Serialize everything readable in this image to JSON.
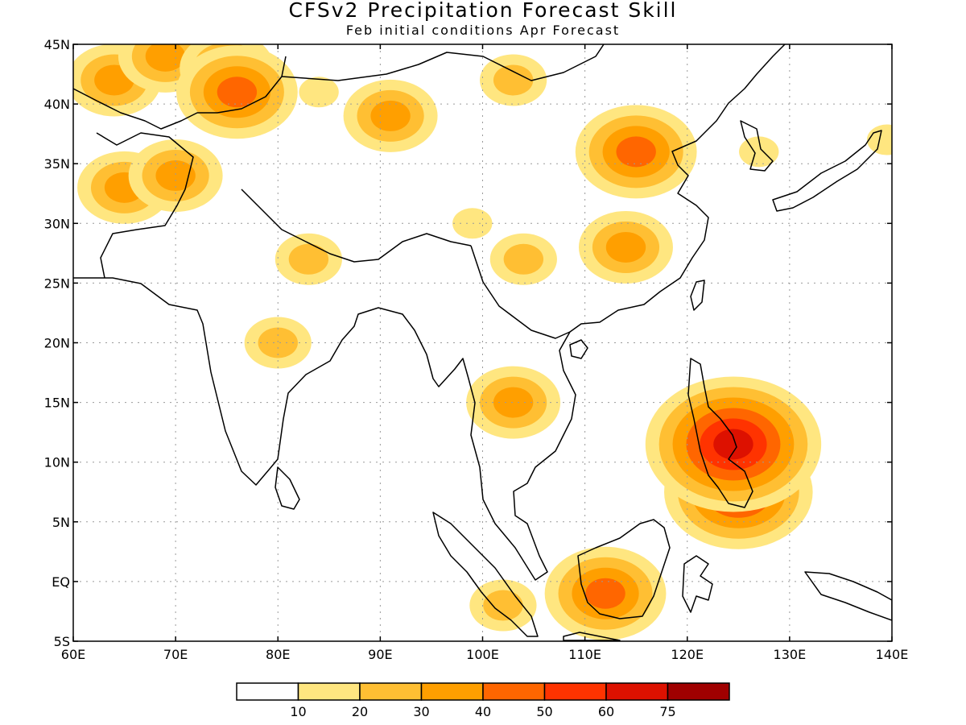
{
  "title": "CFSv2 Precipitation Forecast Skill",
  "subtitle": "Feb initial conditions  Apr Forecast",
  "map": {
    "lon_range": [
      60,
      140
    ],
    "lat_range": [
      -5,
      45
    ],
    "lon_ticks": [
      "60E",
      "70E",
      "80E",
      "90E",
      "100E",
      "110E",
      "120E",
      "130E",
      "140E"
    ],
    "lat_ticks": [
      "5S",
      "EQ",
      "5N",
      "10N",
      "15N",
      "20N",
      "25N",
      "30N",
      "35N",
      "40N",
      "45N"
    ],
    "gridlines": true
  },
  "legend": {
    "labels": [
      "10",
      "20",
      "30",
      "40",
      "50",
      "60",
      "75"
    ],
    "colors": [
      "#ffffff",
      "#ffe680",
      "#ffbf33",
      "#ff9f00",
      "#ff6600",
      "#ff3300",
      "#dd1100",
      "#a00000"
    ]
  },
  "chart_data": {
    "type": "heatmap",
    "title": "CFSv2 Precipitation Forecast Skill",
    "subtitle": "Feb initial conditions  Apr Forecast",
    "x_range": [
      60,
      140
    ],
    "y_range": [
      -5,
      45
    ],
    "levels": [
      10,
      20,
      30,
      40,
      50,
      60,
      75
    ],
    "skill_regions": [
      {
        "lon": 64,
        "lat": 42,
        "value": 35
      },
      {
        "lon": 69,
        "lat": 44,
        "value": 30
      },
      {
        "lon": 75,
        "lat": 43,
        "value": 30
      },
      {
        "lon": 76,
        "lat": 41,
        "value": 45
      },
      {
        "lon": 65,
        "lat": 33,
        "value": 35
      },
      {
        "lon": 70,
        "lat": 34,
        "value": 30
      },
      {
        "lon": 84,
        "lat": 41,
        "value": 15
      },
      {
        "lon": 91,
        "lat": 39,
        "value": 30
      },
      {
        "lon": 103,
        "lat": 42,
        "value": 25
      },
      {
        "lon": 115,
        "lat": 36,
        "value": 40
      },
      {
        "lon": 114,
        "lat": 28,
        "value": 30
      },
      {
        "lon": 104,
        "lat": 27,
        "value": 25
      },
      {
        "lon": 99,
        "lat": 30,
        "value": 15
      },
      {
        "lon": 83,
        "lat": 27,
        "value": 20
      },
      {
        "lon": 80,
        "lat": 20,
        "value": 25
      },
      {
        "lon": 103,
        "lat": 15,
        "value": 30
      },
      {
        "lon": 112,
        "lat": -1,
        "value": 40
      },
      {
        "lon": 102,
        "lat": -2,
        "value": 20
      },
      {
        "lon": 125,
        "lat": 7.5,
        "value": 50
      },
      {
        "lon": 124.5,
        "lat": 11.5,
        "value": 60
      },
      {
        "lon": 127,
        "lat": 36,
        "value": 15
      },
      {
        "lon": 139.5,
        "lat": 37,
        "value": 15
      }
    ]
  }
}
